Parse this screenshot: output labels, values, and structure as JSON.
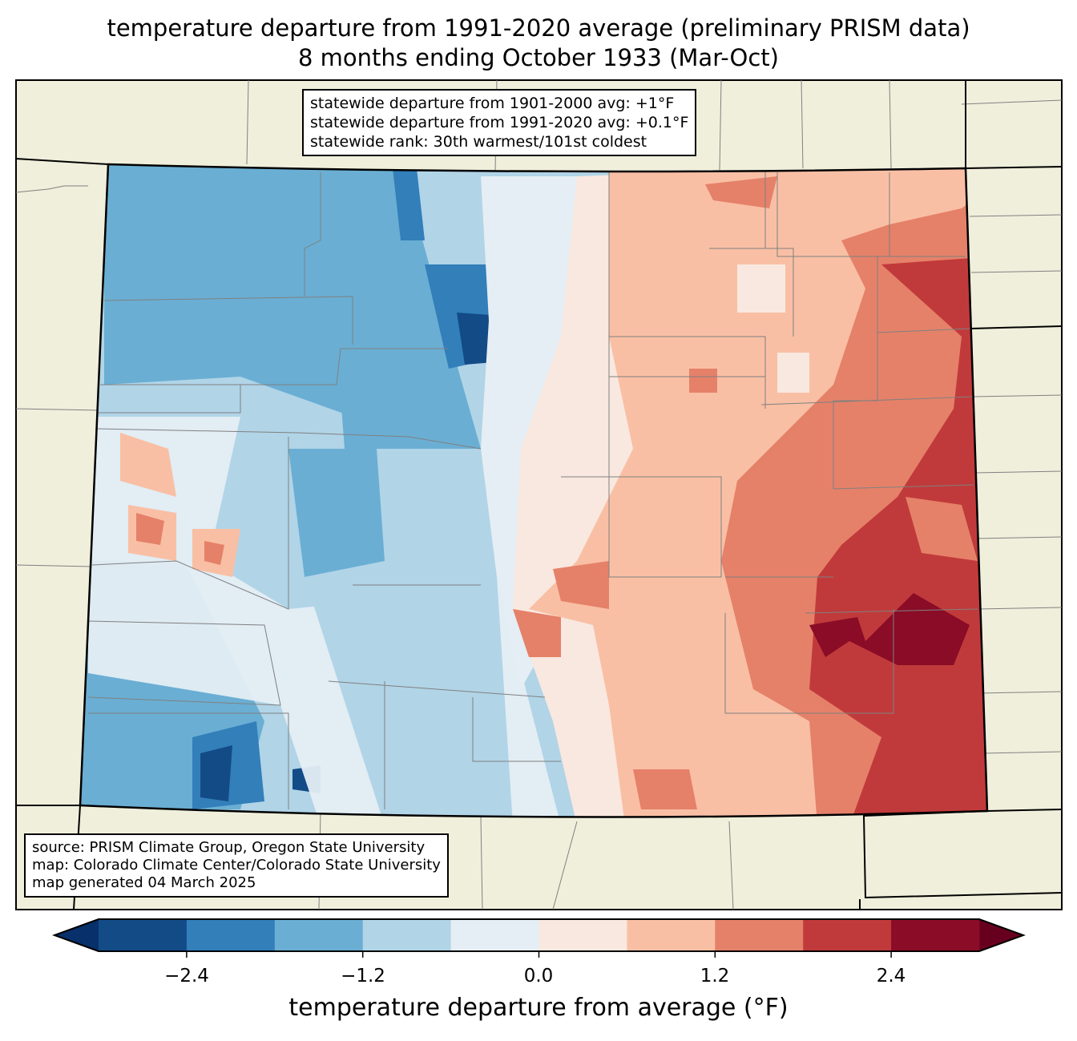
{
  "title": {
    "line1": "temperature departure from 1991-2020 average (preliminary PRISM data)",
    "line2": "8 months ending October 1933 (Mar-Oct)"
  },
  "stats_box": {
    "line1": "statewide departure from 1901-2000 avg: +1°F",
    "line2": "statewide departure from 1991-2020 avg: +0.1°F",
    "line3": "statewide rank: 30th warmest/101st coldest"
  },
  "source_box": {
    "line1": "source: PRISM Climate Group, Oregon State University",
    "line2": "map: Colorado Climate Center/Colorado State University",
    "line3": "map generated 04 March 2025"
  },
  "colorbar": {
    "label": "temperature departure from average (°F)",
    "bounds": [
      -3.0,
      -2.4,
      -1.8,
      -1.2,
      -0.6,
      0.0,
      0.6,
      1.2,
      1.8,
      2.4,
      3.0
    ],
    "colors": [
      "#134b87",
      "#327fba",
      "#6aaed3",
      "#b1d4e7",
      "#e5eef4",
      "#f9e8df",
      "#f9bfa4",
      "#e58169",
      "#c13a3b",
      "#8a0c26"
    ],
    "under_color": "#08306b",
    "over_color": "#67001f",
    "ticks": [
      "−2.4",
      "−1.2",
      "0.0",
      "1.2",
      "2.4"
    ]
  },
  "colors": {
    "land": "#f0efdc",
    "state_border": "#000000",
    "county_border": "#808080"
  }
}
